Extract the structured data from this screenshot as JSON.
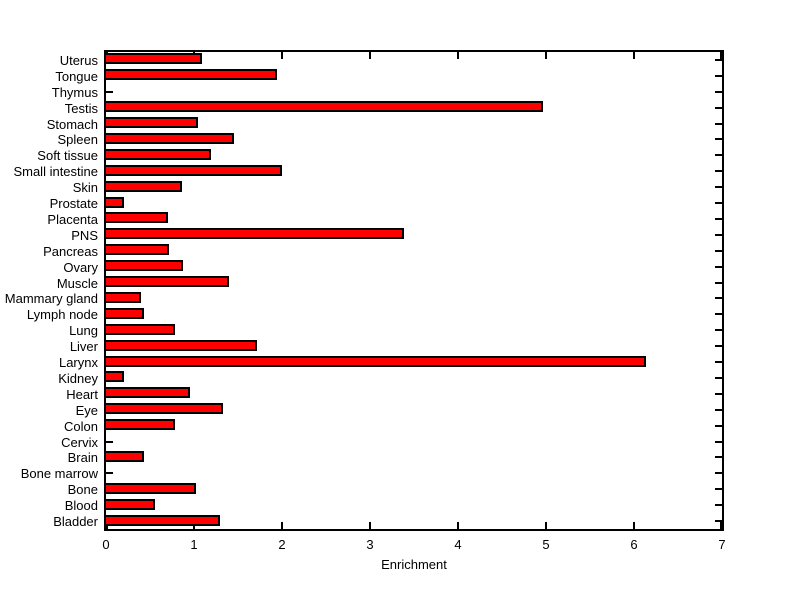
{
  "figure": {
    "background_color": "#ffffff",
    "axis_color": "#000000"
  },
  "chart_data": {
    "type": "bar",
    "orientation": "horizontal",
    "title": "",
    "xlabel": "Enrichment",
    "ylabel": "",
    "xlim": [
      0,
      7
    ],
    "xticks": [
      "0",
      "1",
      "2",
      "3",
      "4",
      "5",
      "6",
      "7"
    ],
    "grid": false,
    "legend_position": "none",
    "bar_fill_color": "#ff0000",
    "bar_edge_color": "#000000",
    "categories": [
      "Uterus",
      "Tongue",
      "Thymus",
      "Testis",
      "Stomach",
      "Spleen",
      "Soft tissue",
      "Small intestine",
      "Skin",
      "Prostate",
      "Placenta",
      "PNS",
      "Pancreas",
      "Ovary",
      "Muscle",
      "Mammary gland",
      "Lymph node",
      "Lung",
      "Liver",
      "Larynx",
      "Kidney",
      "Heart",
      "Eye",
      "Colon",
      "Cervix",
      "Brain",
      "Bone marrow",
      "Bone",
      "Blood",
      "Bladder"
    ],
    "values": [
      1.09,
      1.94,
      0,
      4.97,
      1.05,
      1.46,
      1.19,
      2.0,
      0.86,
      0.21,
      0.71,
      3.39,
      0.72,
      0.88,
      1.4,
      0.4,
      0.43,
      0.78,
      1.72,
      6.14,
      0.2,
      0.95,
      1.33,
      0.78,
      0,
      0.43,
      0,
      1.02,
      0.56,
      1.29
    ]
  }
}
